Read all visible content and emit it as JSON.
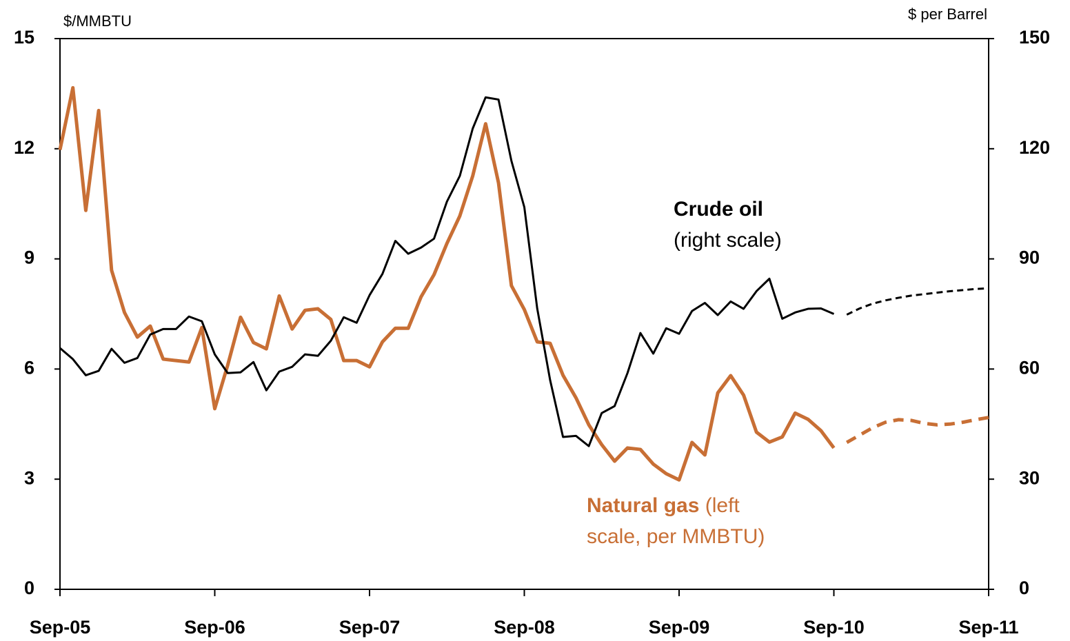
{
  "chart_data": {
    "type": "line",
    "y_label": "$/MMBTU",
    "y2_label": "$ per Barrel",
    "x": [
      0,
      1,
      2,
      3,
      4,
      5,
      6,
      7,
      8,
      9,
      10,
      11,
      12,
      13,
      14,
      15,
      16,
      17,
      18,
      19,
      20,
      21,
      22,
      23,
      24,
      25,
      26,
      27,
      28,
      29,
      30,
      31,
      32,
      33,
      34,
      35,
      36,
      37,
      38,
      39,
      40,
      41,
      42,
      43,
      44,
      45,
      46,
      47,
      48,
      49,
      50,
      51,
      52,
      53,
      54,
      55,
      56,
      57,
      58,
      59,
      60,
      61,
      62,
      63,
      64,
      65,
      66,
      67,
      68,
      69,
      70,
      71,
      72
    ],
    "xlim": [
      0,
      72
    ],
    "xticks": [
      {
        "value": 0,
        "label": "Sep-05"
      },
      {
        "value": 12,
        "label": "Sep-06"
      },
      {
        "value": 24,
        "label": "Sep-07"
      },
      {
        "value": 36,
        "label": "Sep-08"
      },
      {
        "value": 48,
        "label": "Sep-09"
      },
      {
        "value": 60,
        "label": "Sep-10"
      },
      {
        "value": 72,
        "label": "Sep-11"
      }
    ],
    "ylim": [
      0,
      15
    ],
    "yticks": [
      0,
      3,
      6,
      9,
      12,
      15
    ],
    "y2lim": [
      0,
      150
    ],
    "y2ticks": [
      0,
      30,
      60,
      90,
      120,
      150
    ],
    "series": [
      {
        "name": "Natural gas",
        "color": "#c86f35",
        "axis": "y",
        "values": [
          11.97,
          13.66,
          10.32,
          13.04,
          8.69,
          7.54,
          6.87,
          7.17,
          6.27,
          6.23,
          6.19,
          7.13,
          4.92,
          6.1,
          7.41,
          6.72,
          6.55,
          7.99,
          7.09,
          7.6,
          7.64,
          7.35,
          6.23,
          6.23,
          6.06,
          6.74,
          7.11,
          7.11,
          7.97,
          8.57,
          9.42,
          10.17,
          11.26,
          12.68,
          11.07,
          8.27,
          7.62,
          6.74,
          6.7,
          5.83,
          5.22,
          4.48,
          3.94,
          3.49,
          3.85,
          3.81,
          3.41,
          3.15,
          2.98,
          4.0,
          3.66,
          5.35,
          5.82,
          5.29,
          4.28,
          4.01,
          4.15,
          4.8,
          4.63,
          4.32,
          3.85,
          null,
          null,
          null,
          null,
          null,
          null,
          null,
          null,
          null,
          null,
          null,
          null
        ],
        "projection": [
          null,
          null,
          null,
          null,
          null,
          null,
          null,
          null,
          null,
          null,
          null,
          null,
          null,
          null,
          null,
          null,
          null,
          null,
          null,
          null,
          null,
          null,
          null,
          null,
          null,
          null,
          null,
          null,
          null,
          null,
          null,
          null,
          null,
          null,
          null,
          null,
          null,
          null,
          null,
          null,
          null,
          null,
          null,
          null,
          null,
          null,
          null,
          null,
          null,
          null,
          null,
          null,
          null,
          null,
          null,
          null,
          null,
          null,
          null,
          null,
          null,
          4.0,
          4.2,
          4.4,
          4.55,
          4.62,
          4.6,
          4.52,
          4.48,
          4.5,
          4.55,
          4.62,
          4.68
        ]
      },
      {
        "name": "Crude oil",
        "color": "#000000",
        "axis": "y2",
        "values": [
          65.7,
          62.7,
          58.3,
          59.5,
          65.5,
          61.7,
          63.0,
          69.4,
          70.9,
          70.9,
          74.3,
          73.0,
          64.0,
          58.9,
          59.1,
          61.9,
          54.2,
          59.3,
          60.6,
          64.0,
          63.6,
          67.7,
          74.1,
          72.6,
          80.1,
          85.9,
          94.9,
          91.4,
          93.1,
          95.5,
          105.6,
          112.6,
          125.5,
          134.0,
          133.4,
          116.7,
          104.1,
          76.5,
          57.0,
          41.5,
          41.8,
          39.0,
          48.0,
          49.9,
          58.9,
          69.8,
          64.2,
          71.1,
          69.6,
          75.8,
          78.0,
          74.7,
          78.4,
          76.4,
          81.2,
          84.6,
          73.7,
          75.4,
          76.4,
          76.5,
          75.0,
          null,
          null,
          null,
          null,
          null,
          null,
          null,
          null,
          null,
          null,
          null,
          null
        ],
        "projection": [
          null,
          null,
          null,
          null,
          null,
          null,
          null,
          null,
          null,
          null,
          null,
          null,
          null,
          null,
          null,
          null,
          null,
          null,
          null,
          null,
          null,
          null,
          null,
          null,
          null,
          null,
          null,
          null,
          null,
          null,
          null,
          null,
          null,
          null,
          null,
          null,
          null,
          null,
          null,
          null,
          null,
          null,
          null,
          null,
          null,
          null,
          null,
          null,
          null,
          null,
          null,
          null,
          null,
          null,
          null,
          null,
          null,
          null,
          null,
          null,
          null,
          74.8,
          76.5,
          77.8,
          78.7,
          79.4,
          80.0,
          80.4,
          80.8,
          81.2,
          81.5,
          81.8,
          82.0
        ]
      }
    ],
    "annotations": [
      {
        "bold": "Crude oil",
        "rest": "(right scale)"
      },
      {
        "bold": "Natural gas",
        "rest": " (left",
        "line2": "scale, per MMBTU)"
      }
    ]
  }
}
